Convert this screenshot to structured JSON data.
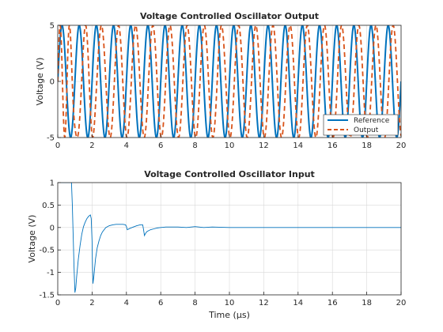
{
  "chart_data": [
    {
      "type": "line",
      "title": "Voltage Controlled Oscillator Output",
      "xlabel": "",
      "ylabel": "Voltage (V)",
      "xlim": [
        0,
        20
      ],
      "ylim": [
        -5,
        5
      ],
      "xticks": [
        0,
        2,
        4,
        6,
        8,
        10,
        12,
        14,
        16,
        18,
        20
      ],
      "yticks": [
        -5,
        0,
        5
      ],
      "grid": true,
      "legend_position": "bottom-right",
      "series": [
        {
          "name": "Reference",
          "color": "#0072BD",
          "style": "solid",
          "amplitude": 5,
          "x": [
            0.0,
            0.25,
            0.5,
            0.75,
            1.0,
            1.25,
            1.5,
            1.75,
            2.0,
            2.25,
            2.5,
            2.75,
            3.0,
            3.25,
            3.5,
            3.75,
            4.0,
            4.25,
            4.5,
            4.75,
            5.0,
            5.25,
            5.5,
            5.75,
            6.0,
            6.25,
            6.5,
            6.75,
            7.0,
            7.25,
            7.5,
            7.75,
            8.0,
            8.25,
            8.5,
            8.75,
            9.0,
            9.25,
            9.5,
            9.75,
            10.0,
            10.25,
            10.5,
            10.75,
            11.0,
            11.25,
            11.5,
            11.75,
            12.0,
            12.25,
            12.5,
            12.75,
            13.0,
            13.25,
            13.5,
            13.75,
            14.0,
            14.25,
            14.5,
            14.75,
            15.0,
            15.25,
            15.5,
            15.75,
            16.0,
            16.25,
            16.5,
            16.75,
            17.0,
            17.25,
            17.5,
            17.75,
            18.0,
            18.25,
            18.5,
            18.75,
            19.0,
            19.25,
            19.5,
            19.75,
            20.0
          ],
          "frequency_MHz": [
            1.0,
            1.0,
            1.0,
            1.0,
            1.0,
            1.0,
            1.0,
            1.0,
            1.0,
            1.0,
            1.0,
            1.0,
            1.0,
            1.0,
            1.0,
            1.0,
            1.0,
            1.0,
            1.0,
            1.0,
            1.0,
            1.0,
            1.0,
            1.0,
            1.0,
            1.0,
            1.0,
            1.0,
            1.0,
            1.0,
            1.0,
            1.0,
            1.0,
            1.0,
            1.0,
            1.0,
            1.0,
            1.0,
            1.0,
            1.0,
            1.0,
            1.0,
            1.0,
            1.0,
            1.0,
            1.0,
            1.0,
            1.0,
            1.0,
            1.0,
            1.0,
            1.0,
            1.0,
            1.0,
            1.0,
            1.0,
            1.0,
            1.0,
            1.0,
            1.0,
            1.0,
            1.0,
            1.0,
            1.0,
            1.0,
            1.0,
            1.0,
            1.0,
            1.0,
            1.0,
            1.0,
            1.0,
            1.0,
            1.0,
            1.0,
            1.0,
            1.0,
            1.0,
            1.0,
            1.0,
            1.0
          ],
          "phase_start_cycles": 0.0
        },
        {
          "name": "Output",
          "color": "#D95319",
          "style": "dashed",
          "amplitude": 5,
          "x": [
            0.0,
            0.25,
            0.5,
            0.75,
            1.0,
            1.25,
            1.5,
            1.75,
            2.0,
            2.25,
            2.5,
            2.75,
            3.0,
            3.25,
            3.5,
            3.75,
            4.0,
            4.25,
            4.5,
            4.75,
            5.0,
            5.25,
            5.5,
            5.75,
            6.0,
            6.25,
            6.5,
            6.75,
            7.0,
            7.25,
            7.5,
            7.75,
            8.0,
            8.25,
            8.5,
            8.75,
            9.0,
            9.25,
            9.5,
            9.75,
            10.0,
            10.25,
            10.5,
            10.75,
            11.0,
            11.25,
            11.5,
            11.75,
            12.0,
            12.25,
            12.5,
            12.75,
            13.0,
            13.25,
            13.5,
            13.75,
            14.0,
            14.25,
            14.5,
            14.75,
            15.0,
            15.25,
            15.5,
            15.75,
            16.0,
            16.25,
            16.5,
            16.75,
            17.0,
            17.25,
            17.5,
            17.75,
            18.0,
            18.25,
            18.5,
            18.75,
            19.0,
            19.25,
            19.5,
            19.75,
            20.0
          ],
          "frequency_MHz": [
            1.8,
            1.85,
            1.9,
            1.6,
            0.7,
            0.95,
            1.1,
            1.2,
            1.25,
            0.9,
            0.95,
            0.98,
            1.0,
            1.02,
            1.03,
            1.02,
            1.0,
            1.0,
            1.0,
            1.0,
            0.99,
            1.0,
            1.0,
            1.0,
            1.0,
            1.0,
            1.0,
            1.0,
            1.0,
            1.0,
            1.0,
            1.0,
            1.0,
            1.0,
            1.0,
            1.0,
            1.0,
            1.0,
            1.0,
            1.0,
            1.0,
            1.0,
            1.0,
            1.0,
            1.0,
            1.0,
            1.0,
            1.0,
            1.0,
            1.0,
            1.0,
            1.0,
            1.0,
            1.0,
            1.0,
            1.0,
            1.0,
            1.0,
            1.0,
            1.0,
            1.0,
            1.0,
            1.0,
            1.0,
            1.0,
            1.0,
            1.0,
            1.0,
            1.0,
            1.0,
            1.0,
            1.0,
            1.0,
            1.0,
            1.0,
            1.0,
            1.0,
            1.0,
            1.0,
            1.0,
            1.0
          ],
          "phase_start_cycles": 0.0
        }
      ]
    },
    {
      "type": "line",
      "title": "Voltage Controlled Oscillator Input",
      "xlabel": "Time (μs)",
      "ylabel": "Voltage (V)",
      "xlim": [
        0,
        20
      ],
      "ylim": [
        -1.5,
        1
      ],
      "xticks": [
        0,
        2,
        4,
        6,
        8,
        10,
        12,
        14,
        16,
        18,
        20
      ],
      "yticks": [
        -1.5,
        -1,
        -0.5,
        0,
        0.5,
        1
      ],
      "grid": true,
      "series": [
        {
          "color": "#0072BD",
          "x": [
            0,
            0.2,
            0.4,
            0.6,
            0.8,
            0.85,
            0.9,
            0.95,
            1.0,
            1.05,
            1.1,
            1.2,
            1.3,
            1.4,
            1.5,
            1.6,
            1.7,
            1.8,
            1.9,
            1.95,
            2.0,
            2.02,
            2.05,
            2.1,
            2.15,
            2.2,
            2.3,
            2.4,
            2.5,
            2.6,
            2.8,
            3.0,
            3.2,
            3.4,
            3.6,
            3.8,
            3.95,
            4.0,
            4.05,
            4.1,
            4.2,
            4.4,
            4.6,
            4.8,
            4.95,
            5.0,
            5.05,
            5.1,
            5.2,
            5.4,
            5.6,
            5.8,
            6.0,
            6.3,
            6.6,
            7.0,
            7.5,
            8.0,
            8.5,
            9.0,
            10.0,
            12.0,
            14.0,
            16.0,
            18.0,
            20.0
          ],
          "y": [
            1.0,
            1.0,
            1.0,
            1.0,
            1.0,
            0.5,
            -0.2,
            -0.9,
            -1.45,
            -1.35,
            -1.1,
            -0.7,
            -0.4,
            -0.15,
            0.02,
            0.12,
            0.2,
            0.25,
            0.28,
            0.2,
            -0.3,
            -0.8,
            -1.25,
            -1.1,
            -0.9,
            -0.7,
            -0.45,
            -0.3,
            -0.18,
            -0.1,
            0.0,
            0.04,
            0.06,
            0.07,
            0.07,
            0.07,
            0.06,
            0.02,
            -0.05,
            -0.04,
            -0.02,
            0.01,
            0.04,
            0.06,
            0.06,
            -0.05,
            -0.18,
            -0.14,
            -0.09,
            -0.05,
            -0.03,
            -0.01,
            0.0,
            0.01,
            0.01,
            0.01,
            0.0,
            0.02,
            0.0,
            0.01,
            0.0,
            0.0,
            0.0,
            0.0,
            0.0,
            0.0
          ]
        }
      ]
    }
  ]
}
